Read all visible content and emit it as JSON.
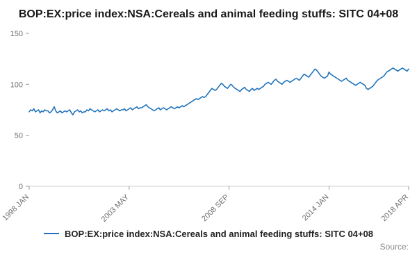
{
  "title": "BOP:EX:price index:NSA:Cereals and animal feeding stuffs: SITC 04+08",
  "source_label": "Source:",
  "legend": {
    "label": "BOP:EX:price index:NSA:Cereals and animal feeding stuffs: SITC 04+08"
  },
  "colors": {
    "line": "#2073bc",
    "axis": "#d0d0d0",
    "tick": "#9a9a9a",
    "axis_text": "#6e6e6e"
  },
  "chart_data": {
    "type": "line",
    "title": "BOP:EX:price index:NSA:Cereals and animal feeding stuffs: SITC 04+08",
    "xlabel": "",
    "ylabel": "",
    "x_start": "1998 JAN",
    "x_end": "2018 APR",
    "frequency": "monthly",
    "ylim": [
      0,
      150
    ],
    "yticks": [
      0,
      50,
      100,
      150
    ],
    "grid": false,
    "legend_position": "bottom",
    "x_ticks": [
      {
        "index": 0,
        "label": "1998 JAN"
      },
      {
        "index": 64,
        "label": "2003 MAY"
      },
      {
        "index": 128,
        "label": "2008 SEP"
      },
      {
        "index": 192,
        "label": "2014 JAN"
      },
      {
        "index": 243,
        "label": "2018 APR"
      }
    ],
    "values": [
      73,
      75,
      74,
      76,
      73,
      74,
      75,
      72,
      74,
      73,
      75,
      74,
      74,
      72,
      73,
      75,
      78,
      74,
      72,
      73,
      74,
      72,
      73,
      74,
      73,
      74,
      75,
      72,
      70,
      73,
      74,
      75,
      73,
      74,
      72,
      73,
      73,
      75,
      74,
      76,
      75,
      74,
      73,
      74,
      75,
      73,
      74,
      75,
      74,
      75,
      76,
      74,
      75,
      73,
      74,
      75,
      76,
      75,
      74,
      75,
      75,
      76,
      74,
      75,
      76,
      77,
      75,
      76,
      77,
      78,
      76,
      77,
      77,
      78,
      79,
      80,
      78,
      77,
      76,
      75,
      74,
      75,
      76,
      77,
      75,
      76,
      77,
      76,
      75,
      76,
      77,
      78,
      77,
      76,
      77,
      78,
      77,
      78,
      79,
      78,
      79,
      80,
      81,
      82,
      83,
      84,
      85,
      86,
      85,
      86,
      87,
      88,
      87,
      88,
      90,
      92,
      94,
      96,
      95,
      94,
      95,
      97,
      99,
      101,
      100,
      98,
      97,
      96,
      98,
      100,
      99,
      97,
      96,
      95,
      94,
      93,
      95,
      96,
      97,
      95,
      94,
      93,
      95,
      96,
      94,
      95,
      96,
      95,
      96,
      97,
      98,
      100,
      101,
      102,
      101,
      100,
      102,
      104,
      105,
      103,
      102,
      101,
      100,
      102,
      103,
      104,
      103,
      102,
      103,
      104,
      105,
      106,
      105,
      104,
      106,
      108,
      110,
      109,
      108,
      107,
      109,
      111,
      113,
      115,
      114,
      112,
      110,
      108,
      107,
      106,
      107,
      108,
      112,
      110,
      109,
      108,
      107,
      106,
      105,
      104,
      103,
      104,
      105,
      106,
      104,
      103,
      102,
      101,
      100,
      99,
      100,
      101,
      102,
      101,
      100,
      99,
      96,
      95,
      96,
      97,
      98,
      100,
      102,
      104,
      105,
      106,
      107,
      108,
      110,
      112,
      113,
      114,
      115,
      116,
      115,
      114,
      113,
      114,
      115,
      116,
      115,
      114,
      113,
      115
    ]
  }
}
